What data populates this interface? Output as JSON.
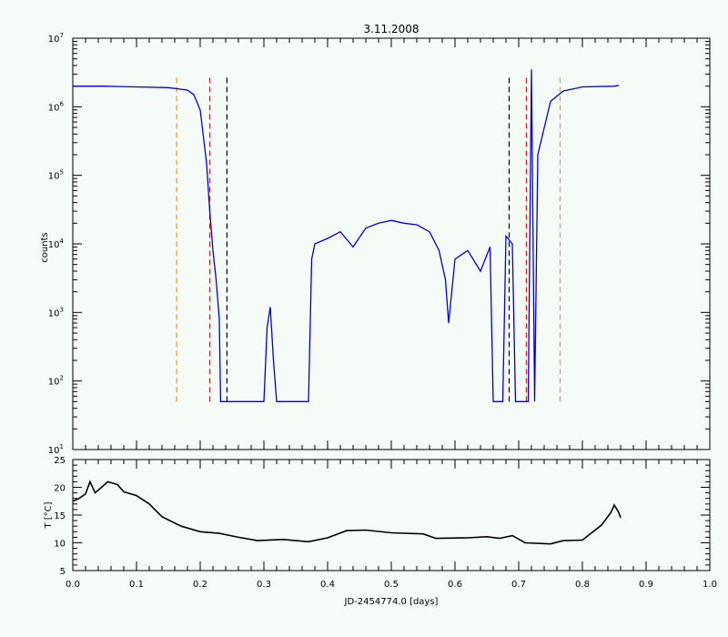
{
  "chart_data": [
    {
      "type": "line",
      "title": "3.11.2008",
      "ylabel": "counts",
      "yscale": "log",
      "ylim": [
        10,
        10000000
      ],
      "xlim": [
        0.0,
        1.0
      ],
      "y_ticks": [
        {
          "value": 10,
          "label": "10",
          "exp": "1"
        },
        {
          "value": 100,
          "label": "10",
          "exp": "2"
        },
        {
          "value": 1000,
          "label": "10",
          "exp": "3"
        },
        {
          "value": 10000,
          "label": "10",
          "exp": "4"
        },
        {
          "value": 100000,
          "label": "10",
          "exp": "5"
        },
        {
          "value": 1000000,
          "label": "10",
          "exp": "6"
        },
        {
          "value": 10000000,
          "label": "10",
          "exp": "7"
        }
      ],
      "series": [
        {
          "color": "#0000e0",
          "points": [
            [
              0.0,
              2000000
            ],
            [
              0.05,
              2000000
            ],
            [
              0.1,
              1950000
            ],
            [
              0.15,
              1900000
            ],
            [
              0.18,
              1750000
            ],
            [
              0.19,
              1500000
            ],
            [
              0.2,
              900000
            ],
            [
              0.21,
              150000
            ],
            [
              0.215,
              30000
            ],
            [
              0.22,
              8000
            ],
            [
              0.225,
              3000
            ],
            [
              0.23,
              800
            ],
            [
              0.232,
              50
            ],
            [
              0.3,
              50
            ],
            [
              0.305,
              600
            ],
            [
              0.31,
              1200
            ],
            [
              0.315,
              200
            ],
            [
              0.32,
              50
            ],
            [
              0.37,
              50
            ],
            [
              0.375,
              6000
            ],
            [
              0.38,
              10000
            ],
            [
              0.4,
              12000
            ],
            [
              0.42,
              15000
            ],
            [
              0.44,
              9000
            ],
            [
              0.46,
              17000
            ],
            [
              0.48,
              20000
            ],
            [
              0.5,
              22000
            ],
            [
              0.52,
              20000
            ],
            [
              0.54,
              19000
            ],
            [
              0.56,
              15000
            ],
            [
              0.575,
              8000
            ],
            [
              0.585,
              3000
            ],
            [
              0.59,
              700
            ],
            [
              0.6,
              6000
            ],
            [
              0.62,
              8000
            ],
            [
              0.64,
              4000
            ],
            [
              0.655,
              9000
            ],
            [
              0.66,
              50
            ],
            [
              0.675,
              50
            ],
            [
              0.68,
              13000
            ],
            [
              0.69,
              10000
            ],
            [
              0.695,
              50
            ],
            [
              0.715,
              50
            ],
            [
              0.72,
              3500000
            ],
            [
              0.725,
              50
            ],
            [
              0.73,
              200000
            ],
            [
              0.75,
              1200000
            ],
            [
              0.77,
              1700000
            ],
            [
              0.8,
              1950000
            ],
            [
              0.85,
              2000000
            ],
            [
              0.857,
              2050000
            ]
          ]
        }
      ],
      "vlines": [
        {
          "x": 0.163,
          "y": [
            50,
            2800000
          ],
          "color": "#e89a2a"
        },
        {
          "x": 0.215,
          "y": [
            50,
            2800000
          ],
          "color": "#d81e1e"
        },
        {
          "x": 0.242,
          "y": [
            50,
            2800000
          ],
          "color": "#000000"
        },
        {
          "x": 0.685,
          "y": [
            50,
            2800000
          ],
          "color": "#000000"
        },
        {
          "x": 0.712,
          "y": [
            50,
            2800000
          ],
          "color": "#d81e1e"
        },
        {
          "x": 0.765,
          "y": [
            50,
            2800000
          ],
          "color": "#e89a2a"
        }
      ]
    },
    {
      "type": "line",
      "ylabel": "T [°C]",
      "xlabel": "JD-2454774.0 [days]",
      "ylim": [
        5,
        25
      ],
      "xlim": [
        0.0,
        1.0
      ],
      "y_ticks": [
        5,
        10,
        15,
        20,
        25
      ],
      "x_ticks": [
        0.0,
        0.1,
        0.2,
        0.3,
        0.4,
        0.5,
        0.6,
        0.7,
        0.8,
        0.9,
        1.0
      ],
      "x_tick_labels": [
        "0.0",
        "0.1",
        "0.2",
        "0.3",
        "0.4",
        "0.5",
        "0.6",
        "0.7",
        "0.8",
        "0.9",
        "1.0"
      ],
      "series": [
        {
          "color": "#000000",
          "points": [
            [
              0.0,
              17.5
            ],
            [
              0.01,
              18.0
            ],
            [
              0.02,
              18.8
            ],
            [
              0.027,
              21.0
            ],
            [
              0.035,
              19.0
            ],
            [
              0.045,
              20.0
            ],
            [
              0.055,
              21.0
            ],
            [
              0.07,
              20.5
            ],
            [
              0.08,
              19.2
            ],
            [
              0.1,
              18.5
            ],
            [
              0.12,
              17.0
            ],
            [
              0.14,
              14.7
            ],
            [
              0.17,
              13.0
            ],
            [
              0.2,
              12.0
            ],
            [
              0.23,
              11.7
            ],
            [
              0.26,
              11.0
            ],
            [
              0.29,
              10.4
            ],
            [
              0.33,
              10.6
            ],
            [
              0.37,
              10.2
            ],
            [
              0.4,
              10.9
            ],
            [
              0.43,
              12.2
            ],
            [
              0.46,
              12.3
            ],
            [
              0.5,
              11.8
            ],
            [
              0.55,
              11.6
            ],
            [
              0.57,
              10.8
            ],
            [
              0.62,
              10.9
            ],
            [
              0.65,
              11.1
            ],
            [
              0.67,
              10.8
            ],
            [
              0.69,
              11.3
            ],
            [
              0.71,
              10.0
            ],
            [
              0.75,
              9.8
            ],
            [
              0.77,
              10.4
            ],
            [
              0.8,
              10.5
            ],
            [
              0.83,
              13.2
            ],
            [
              0.845,
              15.5
            ],
            [
              0.85,
              16.8
            ],
            [
              0.857,
              15.5
            ],
            [
              0.86,
              14.5
            ]
          ]
        }
      ]
    }
  ]
}
